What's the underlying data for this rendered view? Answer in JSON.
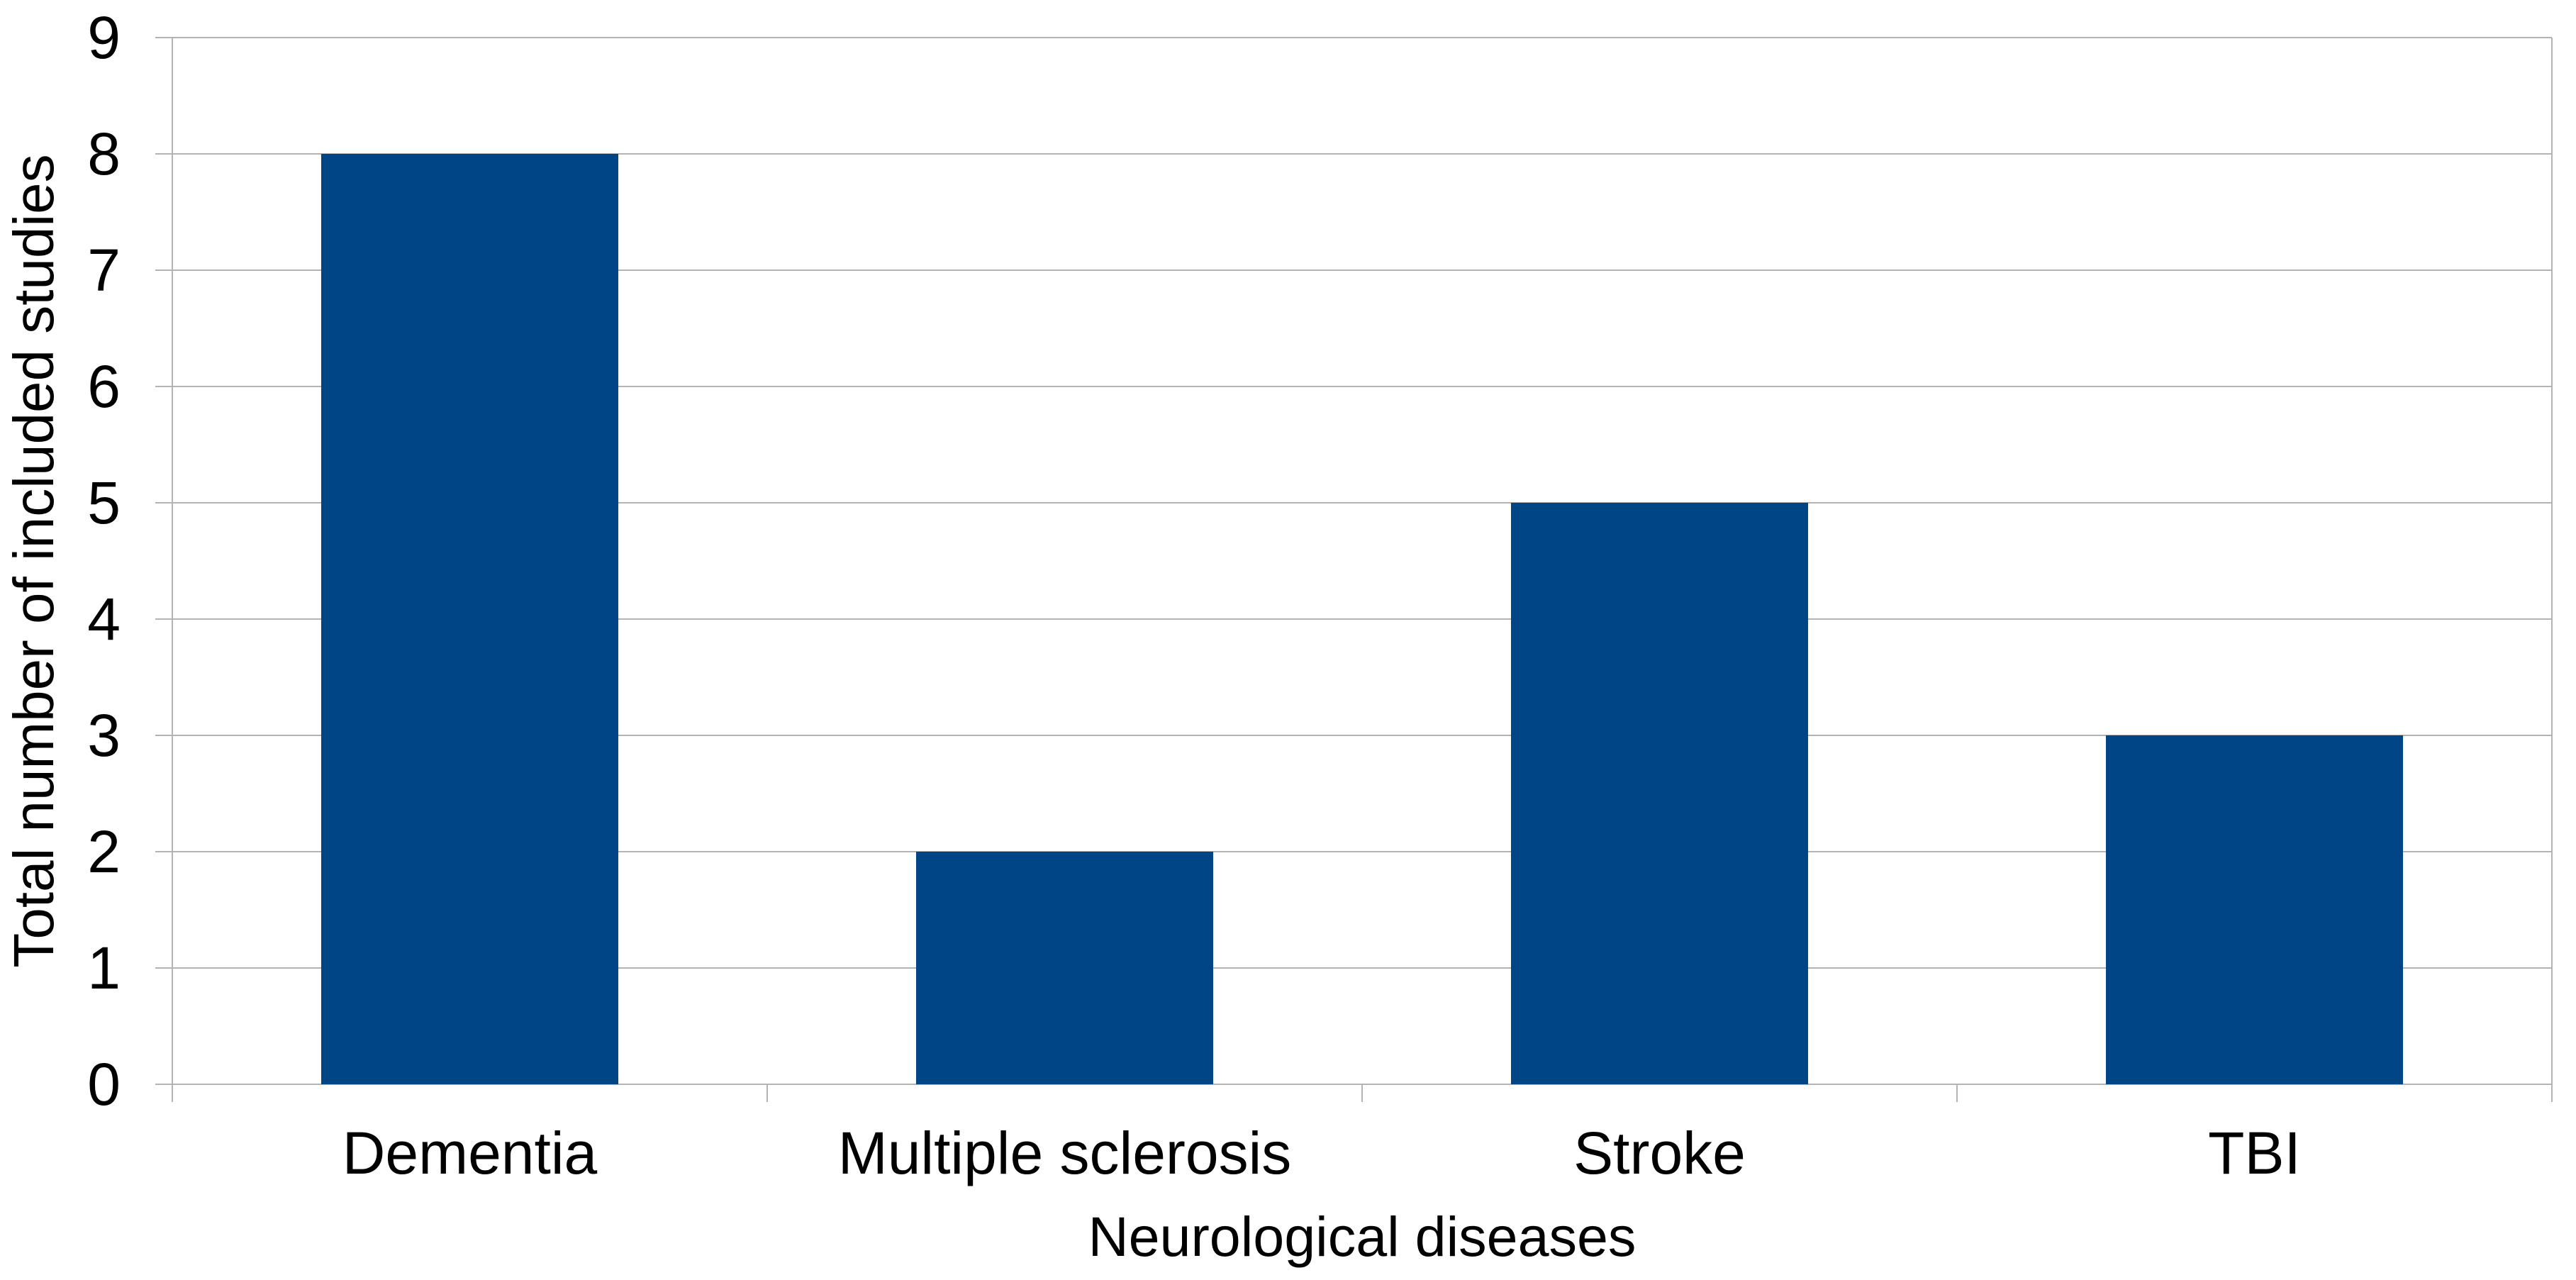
{
  "chart_data": {
    "type": "bar",
    "title": "",
    "categories": [
      "Dementia",
      "Multiple sclerosis",
      "Stroke",
      "TBI"
    ],
    "values": [
      8,
      2,
      5,
      3
    ],
    "xlabel": "Neurological diseases",
    "ylabel": "Total number of included studies",
    "ylim": [
      0,
      9
    ],
    "ytick_step": 1,
    "yticks": [
      0,
      1,
      2,
      3,
      4,
      5,
      6,
      7,
      8,
      9
    ],
    "grid": "horizontal",
    "legend": "none",
    "bar_color": "#004586",
    "grid_color": "#b3b3b3",
    "axis_color": "#b3b3b3",
    "text_color": "#000000",
    "background_color": "#ffffff"
  }
}
